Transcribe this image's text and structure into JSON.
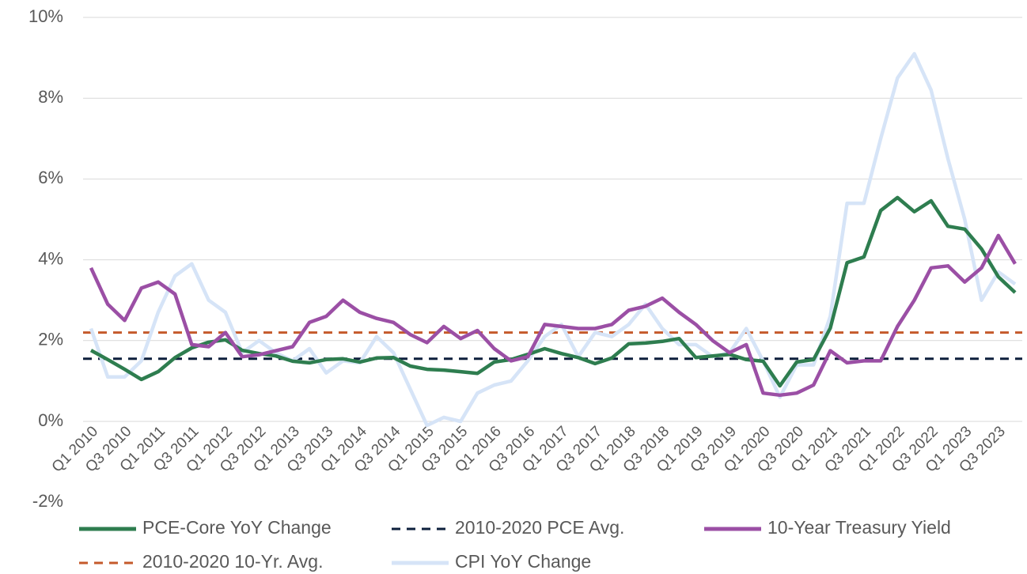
{
  "chart_data": {
    "type": "line",
    "categories": [
      "Q1 2010",
      null,
      "Q3 2010",
      null,
      "Q1 2011",
      null,
      "Q3 2011",
      null,
      "Q1 2012",
      null,
      "Q3 2012",
      null,
      "Q1 2013",
      null,
      "Q3 2013",
      null,
      "Q1 2014",
      null,
      "Q3 2014",
      null,
      "Q1 2015",
      null,
      "Q3 2015",
      null,
      "Q1 2016",
      null,
      "Q3 2016",
      null,
      "Q1 2017",
      null,
      "Q3 2017",
      null,
      "Q1 2018",
      null,
      "Q3 2018",
      null,
      "Q1 2019",
      null,
      "Q3 2019",
      null,
      "Q1 2020",
      null,
      "Q3 2020",
      null,
      "Q1 2021",
      null,
      "Q3 2021",
      null,
      "Q1 2022",
      null,
      "Q3 2022",
      null,
      "Q1 2023",
      null,
      "Q3 2023",
      null
    ],
    "series": [
      {
        "name": "PCE-Core YoY Change",
        "color": "#2e7d4f",
        "values": [
          1.76,
          1.53,
          1.29,
          1.04,
          1.23,
          1.58,
          1.82,
          1.96,
          2.02,
          1.76,
          1.68,
          1.62,
          1.49,
          1.45,
          1.53,
          1.55,
          1.47,
          1.57,
          1.58,
          1.37,
          1.29,
          1.27,
          1.23,
          1.19,
          1.47,
          1.53,
          1.66,
          1.8,
          1.68,
          1.58,
          1.43,
          1.57,
          1.92,
          1.94,
          1.98,
          2.05,
          1.58,
          1.62,
          1.66,
          1.53,
          1.49,
          0.88,
          1.47,
          1.53,
          2.31,
          3.93,
          4.07,
          5.22,
          5.54,
          5.19,
          5.46,
          4.83,
          4.76,
          4.27,
          3.58,
          3.19
        ]
      },
      {
        "name": "2010-2020 PCE Avg.",
        "color": "#0d1f3c",
        "dashed": true,
        "value": 1.55
      },
      {
        "name": "10-Year Treasury Yield",
        "color": "#9b4fa5",
        "values": [
          3.8,
          2.9,
          2.5,
          3.3,
          3.45,
          3.15,
          1.9,
          1.85,
          2.2,
          1.6,
          1.65,
          1.75,
          1.85,
          2.45,
          2.6,
          3.0,
          2.7,
          2.55,
          2.45,
          2.15,
          1.95,
          2.35,
          2.05,
          2.25,
          1.8,
          1.5,
          1.6,
          2.4,
          2.35,
          2.3,
          2.3,
          2.4,
          2.75,
          2.85,
          3.05,
          2.7,
          2.4,
          2.0,
          1.7,
          1.9,
          0.7,
          0.65,
          0.7,
          0.9,
          1.75,
          1.45,
          1.5,
          1.5,
          2.35,
          3.0,
          3.8,
          3.85,
          3.45,
          3.8,
          4.6,
          3.9
        ]
      },
      {
        "name": "2010-2020 10-Yr. Avg.",
        "color": "#c55a2b",
        "dashed": true,
        "value": 2.2
      },
      {
        "name": "CPI YoY Change",
        "color": "#d6e4f7",
        "values": [
          2.3,
          1.1,
          1.1,
          1.5,
          2.7,
          3.6,
          3.9,
          3.0,
          2.7,
          1.7,
          2.0,
          1.7,
          1.5,
          1.8,
          1.2,
          1.5,
          1.45,
          2.1,
          1.7,
          0.8,
          -0.1,
          0.1,
          0.0,
          0.7,
          0.9,
          1.0,
          1.5,
          2.1,
          2.4,
          1.6,
          2.2,
          2.1,
          2.4,
          2.9,
          2.3,
          1.9,
          1.9,
          1.6,
          1.7,
          2.3,
          1.5,
          0.6,
          1.4,
          1.4,
          2.6,
          5.4,
          5.4,
          7.0,
          8.5,
          9.1,
          8.2,
          6.5,
          5.0,
          3.0,
          3.7,
          3.4
        ]
      }
    ],
    "ylim": [
      -2,
      10
    ],
    "yticks": [
      {
        "value": -2,
        "label": "-2%"
      },
      {
        "value": 0,
        "label": "0%"
      },
      {
        "value": 2,
        "label": "2%"
      },
      {
        "value": 4,
        "label": "4%"
      },
      {
        "value": 6,
        "label": "6%"
      },
      {
        "value": 8,
        "label": "8%"
      },
      {
        "value": 10,
        "label": "10%"
      }
    ],
    "grid": true
  }
}
